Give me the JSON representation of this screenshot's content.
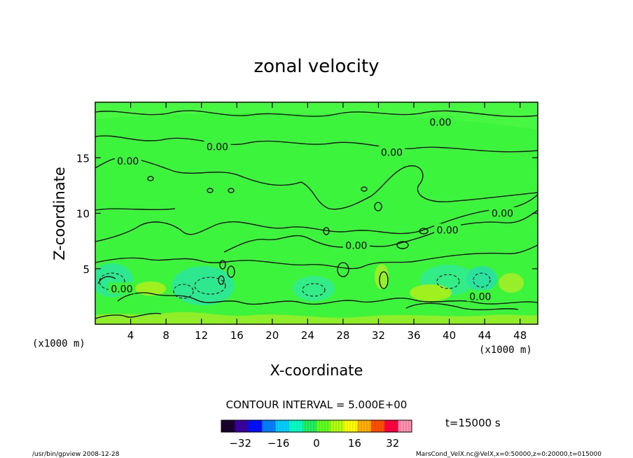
{
  "chart_data": {
    "type": "heatmap",
    "title": "zonal velocity",
    "xlabel": "X-coordinate",
    "ylabel": "Z-coordinate",
    "x_unit_left": "(x1000 m)",
    "x_unit_right": "(x1000 m)",
    "xlim": [
      0,
      50
    ],
    "ylim": [
      0,
      20
    ],
    "x_ticks": [
      4,
      8,
      12,
      16,
      20,
      24,
      28,
      32,
      36,
      40,
      44,
      48
    ],
    "y_ticks": [
      5,
      10,
      15
    ],
    "contour_interval_text": "CONTOUR INTERVAL = 5.000E+00",
    "contour_labels": [
      {
        "x": 39.0,
        "y": 18.2,
        "text": "0.00"
      },
      {
        "x": 13.8,
        "y": 16.0,
        "text": "0.00"
      },
      {
        "x": 33.5,
        "y": 15.5,
        "text": "0.00"
      },
      {
        "x": 3.7,
        "y": 14.7,
        "text": "0.00"
      },
      {
        "x": 46.0,
        "y": 10.0,
        "text": "0.00"
      },
      {
        "x": 39.8,
        "y": 8.5,
        "text": "0.00"
      },
      {
        "x": 29.5,
        "y": 7.1,
        "text": "0.00"
      },
      {
        "x": 43.5,
        "y": 2.5,
        "text": "0.00"
      },
      {
        "x": 3.0,
        "y": 3.2,
        "text": "0.00"
      }
    ],
    "colorbar": {
      "ticks": [
        -32,
        -16,
        0,
        16,
        32
      ],
      "range": [
        -40,
        40
      ],
      "colors": [
        "#1a0030",
        "#3a00a0",
        "#0010ff",
        "#0080ff",
        "#00d0ff",
        "#00ffc8",
        "#20f060",
        "#60ff20",
        "#b0ff10",
        "#ffff00",
        "#ffb000",
        "#ff5000",
        "#ff0040",
        "#ff90b0"
      ]
    },
    "time_label": "t=15000 s",
    "footer_left": "/usr/bin/gpview   2008-12-28",
    "footer_right": "MarsCond_VelX.nc@VelX,x=0:50000,z=0:20000,t=015000"
  }
}
